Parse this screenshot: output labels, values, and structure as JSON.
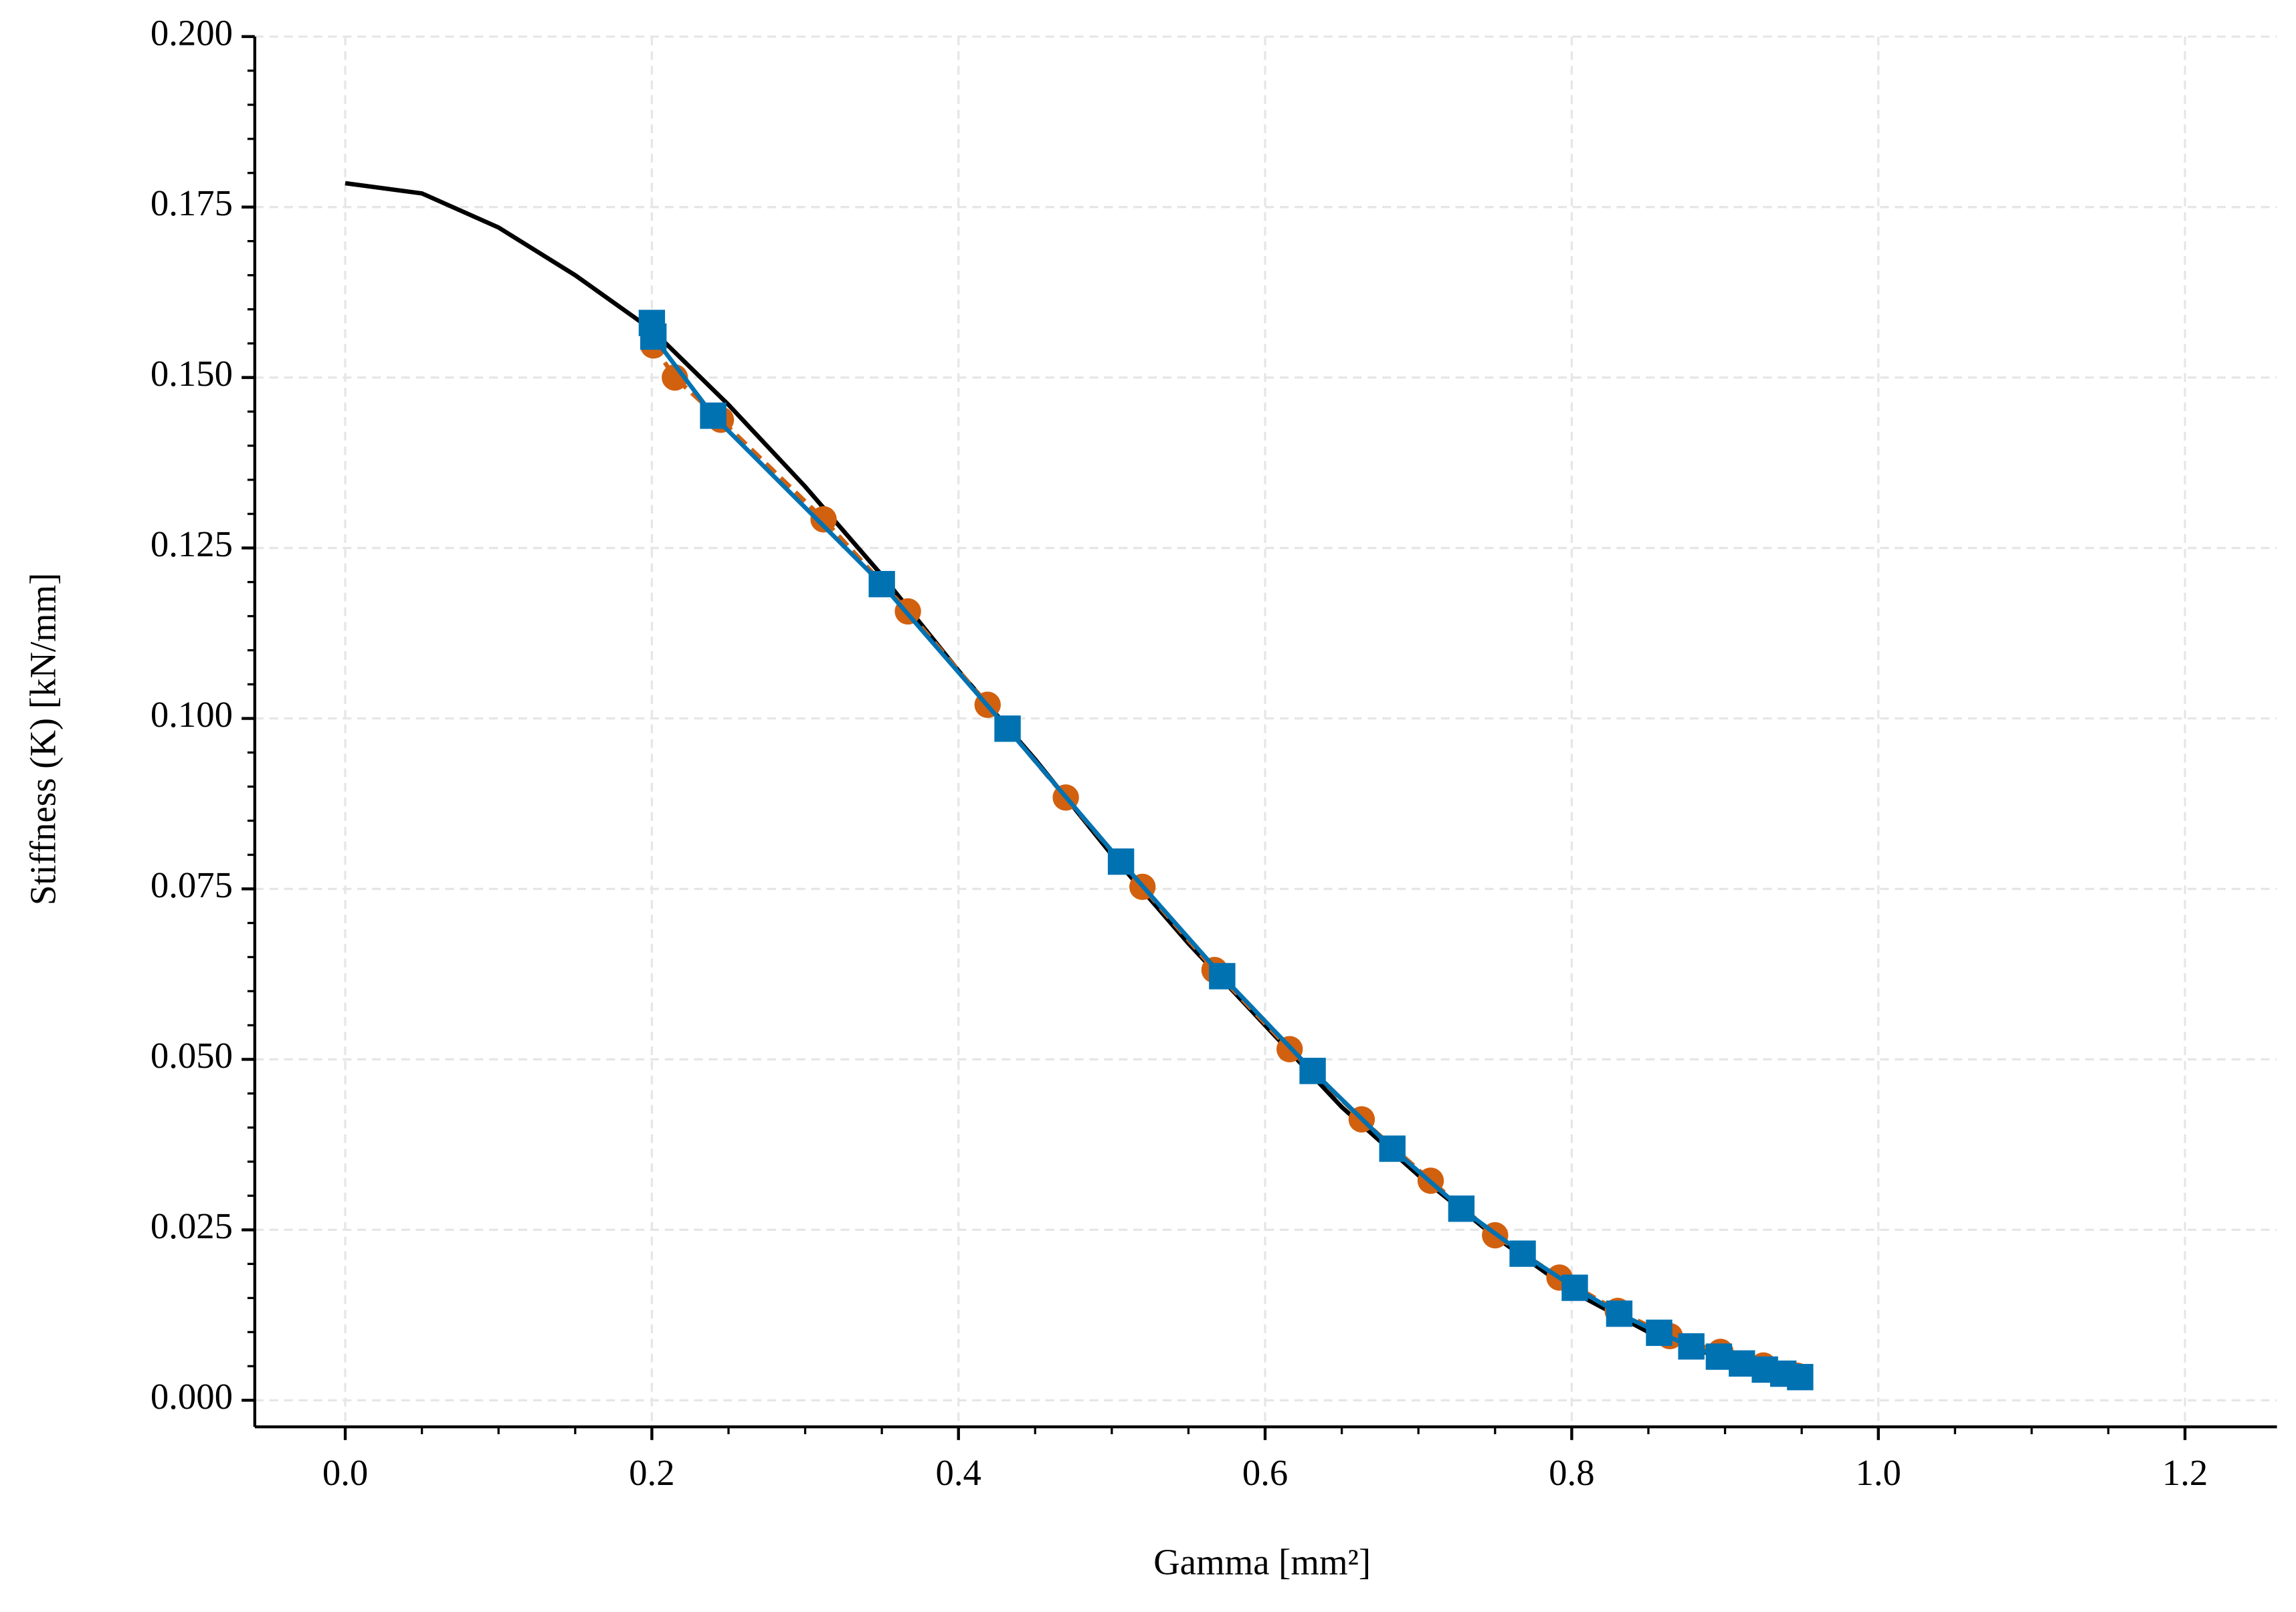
{
  "chart_data": {
    "type": "line",
    "xlabel": "Gamma [mm²]",
    "ylabel": "Stiffness (K) [kN/mm]",
    "xlim": [
      -0.059,
      1.26
    ],
    "ylim": [
      -0.0039,
      0.2
    ],
    "xticks": [
      {
        "value": 0,
        "label": "0.0"
      },
      {
        "value": 0.2,
        "label": "0.2"
      },
      {
        "value": 0.4,
        "label": "0.4"
      },
      {
        "value": 0.6,
        "label": "0.6"
      },
      {
        "value": 0.8,
        "label": "0.8"
      },
      {
        "value": 1,
        "label": "1.0"
      },
      {
        "value": 1.2,
        "label": "1.2"
      }
    ],
    "yticks": [
      {
        "value": 0,
        "label": "0.000"
      },
      {
        "value": 0.025,
        "label": "0.025"
      },
      {
        "value": 0.05,
        "label": "0.050"
      },
      {
        "value": 0.075,
        "label": "0.075"
      },
      {
        "value": 0.1,
        "label": "0.100"
      },
      {
        "value": 0.125,
        "label": "0.125"
      },
      {
        "value": 0.15,
        "label": "0.150"
      },
      {
        "value": 0.175,
        "label": "0.175"
      },
      {
        "value": 0.2,
        "label": "0.200"
      }
    ],
    "grid": true,
    "series": [
      {
        "color": "#000000",
        "linestyle": "solid",
        "marker": "none",
        "x": [
          0,
          0.05,
          0.1,
          0.15,
          0.2,
          0.25,
          0.3,
          0.35,
          0.4,
          0.45,
          0.5,
          0.55,
          0.6,
          0.65,
          0.7,
          0.75,
          0.8,
          0.85,
          0.9,
          0.95
        ],
        "values": [
          0.1785,
          0.177,
          0.172,
          0.165,
          0.157,
          0.146,
          0.134,
          0.121,
          0.107,
          0.094,
          0.08,
          0.067,
          0.055,
          0.043,
          0.033,
          0.024,
          0.016,
          0.01,
          0.006,
          0.003
        ]
      },
      {
        "color": "#d1600f",
        "linestyle": "dashed",
        "marker": "circle",
        "x": [
          0.201,
          0.215,
          0.245,
          0.312,
          0.367,
          0.419,
          0.47,
          0.52,
          0.567,
          0.616,
          0.663,
          0.708,
          0.75,
          0.792,
          0.83,
          0.864,
          0.897,
          0.925,
          0.947
        ],
        "values": [
          0.1547,
          0.15,
          0.1438,
          0.1292,
          0.1157,
          0.102,
          0.0884,
          0.0753,
          0.0631,
          0.0515,
          0.0412,
          0.0322,
          0.0242,
          0.018,
          0.0131,
          0.0094,
          0.0071,
          0.0051,
          0.0036
        ]
      },
      {
        "color": "#0072b2",
        "linestyle": "solid",
        "marker": "square",
        "x": [
          0.2,
          0.201,
          0.24,
          0.35,
          0.432,
          0.506,
          0.572,
          0.631,
          0.683,
          0.728,
          0.768,
          0.802,
          0.831,
          0.857,
          0.878,
          0.896,
          0.911,
          0.926,
          0.938,
          0.949
        ],
        "values": [
          0.158,
          0.156,
          0.1444,
          0.1197,
          0.0985,
          0.079,
          0.0622,
          0.0483,
          0.0369,
          0.0281,
          0.0215,
          0.0165,
          0.0127,
          0.0099,
          0.0079,
          0.0064,
          0.0054,
          0.0045,
          0.0039,
          0.0034
        ]
      }
    ]
  }
}
